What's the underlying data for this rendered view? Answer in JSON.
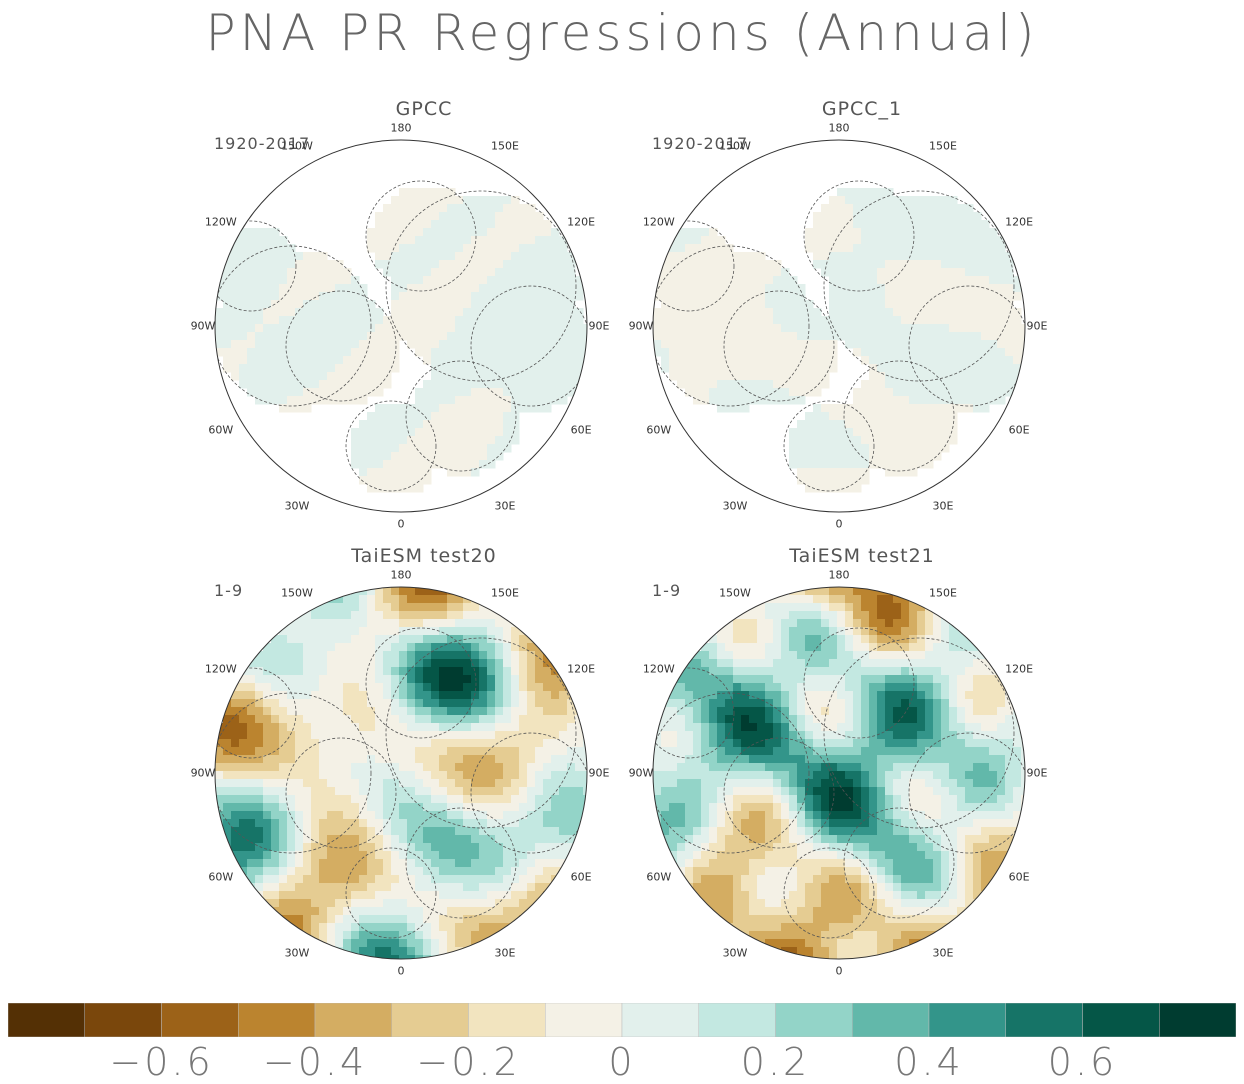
{
  "title": "PNA PR Regressions (Annual)",
  "lon_labels": [
    "180",
    "150E",
    "120E",
    "90E",
    "60E",
    "30E",
    "0",
    "30W",
    "60W",
    "90W",
    "120W",
    "150W"
  ],
  "panels": [
    {
      "title": "GPCC",
      "period": "1920-2017",
      "coverage": "land-only",
      "amplitude": 0.1
    },
    {
      "title": "GPCC_1",
      "period": "1920-2017",
      "coverage": "land-only",
      "amplitude": 0.1
    },
    {
      "title": "TaiESM test20",
      "period": "1-9",
      "coverage": "global",
      "amplitude": 0.6
    },
    {
      "title": "TaiESM test21",
      "period": "1-9",
      "coverage": "global",
      "amplitude": 0.55
    }
  ],
  "colorbar": {
    "colors": [
      "#543005",
      "#7a470c",
      "#9c6218",
      "#bb842f",
      "#d4ad62",
      "#e5cc92",
      "#f2e4bf",
      "#f4f1e6",
      "#e2f0ec",
      "#c3e8e1",
      "#93d4c8",
      "#62b8aa",
      "#33958a",
      "#167467",
      "#055647",
      "#003c30"
    ],
    "tick_labels": [
      "-0.6",
      "-0.4",
      "-0.2",
      "0",
      "0.2",
      "0.4",
      "0.6"
    ]
  }
}
